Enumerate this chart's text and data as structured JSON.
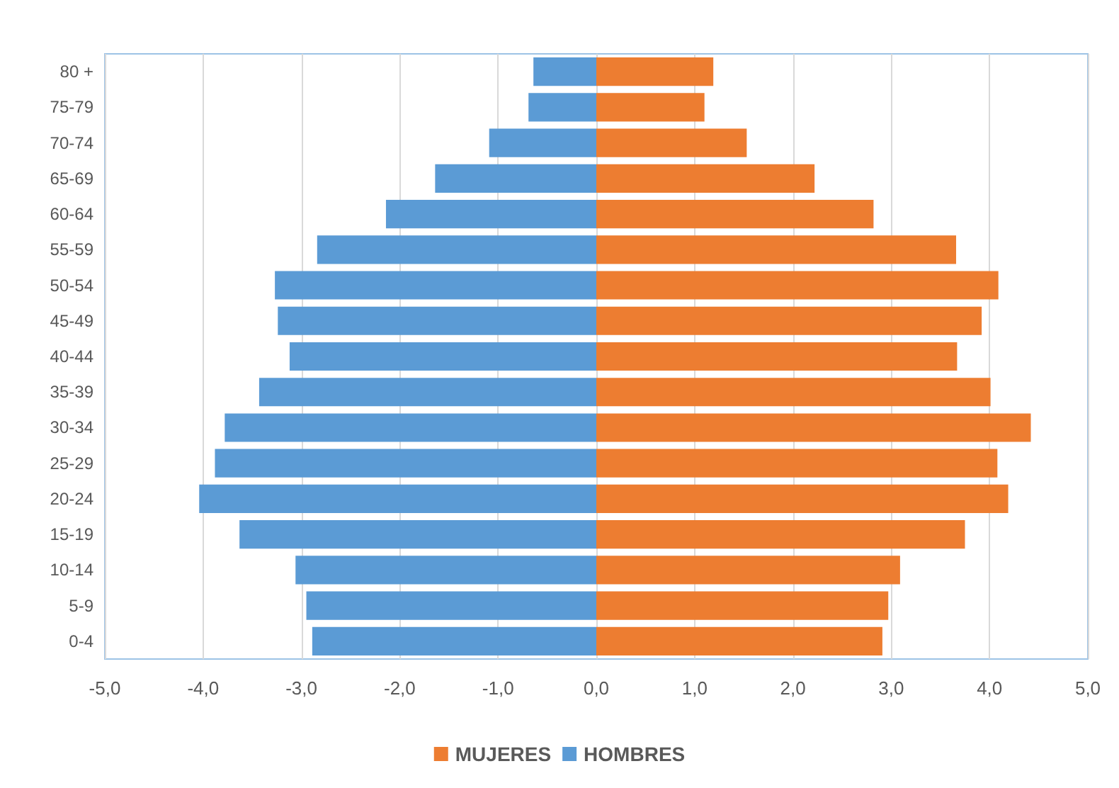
{
  "chart_data": {
    "type": "bar",
    "orientation": "horizontal",
    "categories": [
      "80 +",
      "75-79",
      "70-74",
      "65-69",
      "60-64",
      "55-59",
      "50-54",
      "45-49",
      "40-44",
      "35-39",
      "30-34",
      "25-29",
      "20-24",
      "15-19",
      "10-14",
      "5-9",
      "0-4"
    ],
    "series": [
      {
        "name": "MUJERES",
        "color": "#ed7d31",
        "values": [
          1.19,
          1.1,
          1.53,
          2.22,
          2.82,
          3.66,
          4.09,
          3.92,
          3.67,
          4.01,
          4.42,
          4.08,
          4.19,
          3.75,
          3.09,
          2.97,
          2.91
        ]
      },
      {
        "name": "HOMBRES",
        "color": "#5b9bd5",
        "values": [
          -0.64,
          -0.69,
          -1.09,
          -1.64,
          -2.14,
          -2.84,
          -3.27,
          -3.24,
          -3.12,
          -3.43,
          -3.78,
          -3.88,
          -4.04,
          -3.63,
          -3.06,
          -2.95,
          -2.89
        ]
      }
    ],
    "xlim": [
      -5,
      5
    ],
    "xticks": [
      {
        "value": -5,
        "label": "-5,0"
      },
      {
        "value": -4,
        "label": "-4,0"
      },
      {
        "value": -3,
        "label": "-3,0"
      },
      {
        "value": -2,
        "label": "-2,0"
      },
      {
        "value": -1,
        "label": "-1,0"
      },
      {
        "value": 0,
        "label": "0,0"
      },
      {
        "value": 1,
        "label": "1,0"
      },
      {
        "value": 2,
        "label": "2,0"
      },
      {
        "value": 3,
        "label": "3,0"
      },
      {
        "value": 4,
        "label": "4,0"
      },
      {
        "value": 5,
        "label": "5,0"
      }
    ],
    "stacked": true,
    "grid": "x",
    "legend": "bottom"
  }
}
